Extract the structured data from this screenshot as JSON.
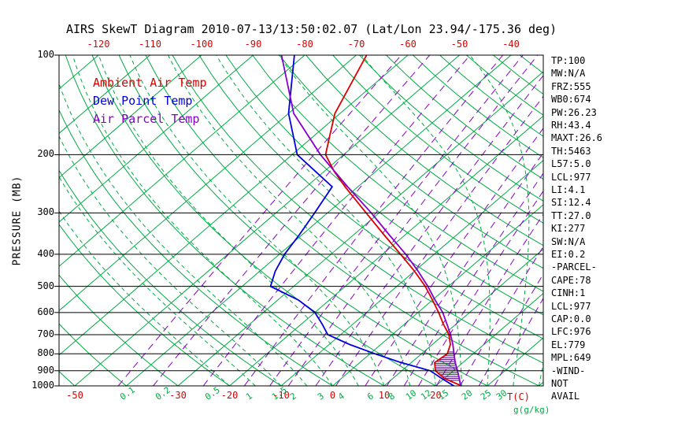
{
  "title": "AIRS SkewT Diagram 2010-07-13/13:50:02.07 (Lat/Lon 23.94/-175.36 deg)",
  "legend": {
    "items": [
      {
        "label": "Ambient Air Temp",
        "color": "#dd0000"
      },
      {
        "label": "Dew Point Temp",
        "color": "#0000dd"
      },
      {
        "label": "Air Parcel Temp",
        "color": "#8800cc"
      }
    ]
  },
  "axes": {
    "y_label": "PRESSURE (MB)",
    "pressure_ticks": [
      100,
      200,
      300,
      400,
      500,
      600,
      700,
      800,
      900,
      1000
    ],
    "top_temp_ticks": [
      -120,
      -110,
      -100,
      -90,
      -80,
      -70,
      -60,
      -50,
      -40
    ],
    "bottom_temp_ticks": [
      -50,
      -30,
      -20,
      -10,
      0,
      10,
      20
    ],
    "bottom_temp_unit": "T(C)",
    "mixing_ratio_ticks": [
      0.1,
      0.2,
      0.5,
      1,
      1.5,
      2,
      3,
      4,
      6,
      8,
      10,
      12,
      15,
      20,
      25,
      30
    ],
    "mixing_ratio_unit": "g(g/kg)"
  },
  "info_panel": {
    "items": [
      "TP:100",
      "MW:N/A",
      "FRZ:555",
      "WB0:674",
      "PW:26.23",
      "RH:43.4",
      "MAXT:26.6",
      "TH:5463",
      "L57:5.0",
      "LCL:977",
      "LI:4.1",
      "SI:12.4",
      "TT:27.0",
      "KI:277",
      "SW:N/A",
      "EI:0.2",
      "-PARCEL-",
      "CAPE:78",
      "CINH:1",
      "LCL:977",
      "CAP:0.0",
      "LFC:976",
      "EL:779",
      "MPL:649",
      "-WIND-",
      "NOT",
      "AVAIL"
    ]
  },
  "chart_data": {
    "type": "line",
    "variant": "skew-t-log-p",
    "title": "AIRS SkewT Diagram",
    "x_axis": {
      "label": "Temperature (C)",
      "top_range": [
        -120,
        -40
      ],
      "bottom_range": [
        -50,
        30
      ]
    },
    "y_axis": {
      "label": "PRESSURE (MB)",
      "scale": "log",
      "range": [
        100,
        1000
      ],
      "gridlines": [
        100,
        200,
        300,
        400,
        500,
        600,
        700,
        800,
        900,
        1000
      ]
    },
    "series": [
      {
        "name": "Ambient Air Temp",
        "color": "#dd0000",
        "units": [
          "mb",
          "C"
        ],
        "points": [
          [
            100,
            -68
          ],
          [
            150,
            -61
          ],
          [
            175,
            -57
          ],
          [
            200,
            -53.5
          ],
          [
            225,
            -48
          ],
          [
            250,
            -42.5
          ],
          [
            300,
            -32.5
          ],
          [
            350,
            -24
          ],
          [
            400,
            -16.5
          ],
          [
            450,
            -10
          ],
          [
            500,
            -4.5
          ],
          [
            550,
            0
          ],
          [
            600,
            4
          ],
          [
            650,
            7.5
          ],
          [
            700,
            11
          ],
          [
            750,
            13.5
          ],
          [
            800,
            15
          ],
          [
            850,
            14.5
          ],
          [
            900,
            16.5
          ],
          [
            950,
            20
          ],
          [
            1000,
            25
          ]
        ]
      },
      {
        "name": "Dew Point Temp",
        "color": "#0000dd",
        "units": [
          "mb",
          "C"
        ],
        "points": [
          [
            100,
            -82
          ],
          [
            150,
            -70
          ],
          [
            200,
            -59
          ],
          [
            250,
            -45
          ],
          [
            300,
            -42.5
          ],
          [
            350,
            -40.5
          ],
          [
            400,
            -39
          ],
          [
            450,
            -37
          ],
          [
            500,
            -34.5
          ],
          [
            550,
            -26
          ],
          [
            600,
            -20
          ],
          [
            650,
            -16
          ],
          [
            700,
            -12.5
          ],
          [
            750,
            -6
          ],
          [
            800,
            1
          ],
          [
            850,
            8
          ],
          [
            900,
            15.5
          ],
          [
            950,
            19.5
          ],
          [
            1000,
            23.5
          ]
        ]
      },
      {
        "name": "Air Parcel Temp",
        "color": "#8800cc",
        "units": [
          "mb",
          "C"
        ],
        "points": [
          [
            100,
            -84.5
          ],
          [
            150,
            -69
          ],
          [
            200,
            -54.5
          ],
          [
            250,
            -42
          ],
          [
            300,
            -31.5
          ],
          [
            350,
            -23
          ],
          [
            400,
            -15.5
          ],
          [
            450,
            -9.3
          ],
          [
            500,
            -4
          ],
          [
            550,
            0.5
          ],
          [
            600,
            4.8
          ],
          [
            650,
            8.2
          ],
          [
            700,
            11.3
          ],
          [
            750,
            14
          ],
          [
            800,
            16.3
          ],
          [
            850,
            18.5
          ],
          [
            900,
            20.8
          ],
          [
            950,
            22.9
          ],
          [
            1000,
            24.8
          ]
        ]
      }
    ],
    "cape_hatch_pressure_range": [
      790,
      972
    ],
    "grid": {
      "isotherm_step_c": 10,
      "isotherm_range_c": [
        -160,
        40
      ],
      "dry_adiabat_theta_c": {
        "from": -60,
        "to": 180,
        "step": 10
      },
      "moist_adiabat_start_c": {
        "from": -20,
        "to": 40,
        "step": 5
      },
      "mixing_ratio_lines_gkg": [
        0.1,
        0.2,
        0.5,
        1,
        1.5,
        2,
        3,
        4,
        6,
        8,
        10,
        12,
        15,
        20,
        25,
        30
      ]
    }
  },
  "colors": {
    "grid_green": "#00aa44",
    "pressure_line": "#000000",
    "ambient": "#dd0000",
    "dewpoint": "#0000dd",
    "parcel": "#8800cc",
    "mixing_ratio": "#8800cc",
    "hatch": "#4b0082",
    "top_axis_text": "#dd0000",
    "bottom_temp_text": "#dd0000",
    "mixing_text": "#00aa44",
    "title_text": "#000000"
  }
}
